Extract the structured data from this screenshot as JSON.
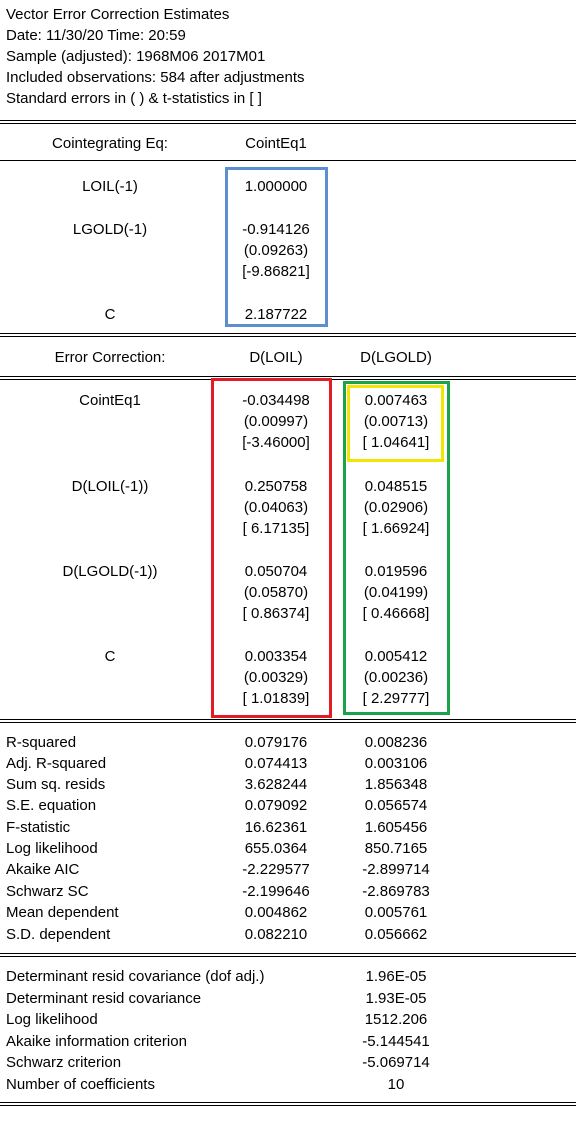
{
  "header": {
    "title": "Vector Error Correction Estimates",
    "date": "Date: 11/30/20   Time: 20:59",
    "sample": "Sample (adjusted): 1968M06 2017M01",
    "observations": "Included observations: 584 after adjustments",
    "std_note": "Standard errors in ( ) & t-statistics in [ ]"
  },
  "coint": {
    "header_label": "Cointegrating Eq:",
    "header_col": "CointEq1",
    "rows": [
      {
        "label": "LOIL(-1)",
        "coef": "1.000000"
      },
      {
        "label": "LGOLD(-1)",
        "coef": "-0.914126",
        "se": "(0.09263)",
        "t": "[-9.86821]"
      },
      {
        "label": "C",
        "coef": "2.187722"
      }
    ]
  },
  "ec": {
    "header_label": "Error Correction:",
    "col1": "D(LOIL)",
    "col2": "D(LGOLD)",
    "rows": [
      {
        "label": "CointEq1",
        "c1": [
          "-0.034498",
          "(0.00997)",
          "[-3.46000]"
        ],
        "c2": [
          "0.007463",
          "(0.00713)",
          "[ 1.04641]"
        ]
      },
      {
        "label": "D(LOIL(-1))",
        "c1": [
          "0.250758",
          "(0.04063)",
          "[ 6.17135]"
        ],
        "c2": [
          "0.048515",
          "(0.02906)",
          "[ 1.66924]"
        ]
      },
      {
        "label": "D(LGOLD(-1))",
        "c1": [
          "0.050704",
          "(0.05870)",
          "[ 0.86374]"
        ],
        "c2": [
          "0.019596",
          "(0.04199)",
          "[ 0.46668]"
        ]
      },
      {
        "label": "C",
        "c1": [
          "0.003354",
          "(0.00329)",
          "[ 1.01839]"
        ],
        "c2": [
          "0.005412",
          "(0.00236)",
          "[ 2.29777]"
        ]
      }
    ]
  },
  "stats": [
    {
      "label": "R-squared",
      "c1": "0.079176",
      "c2": "0.008236"
    },
    {
      "label": "Adj. R-squared",
      "c1": "0.074413",
      "c2": "0.003106"
    },
    {
      "label": "Sum sq. resids",
      "c1": "3.628244",
      "c2": "1.856348"
    },
    {
      "label": "S.E. equation",
      "c1": "0.079092",
      "c2": "0.056574"
    },
    {
      "label": "F-statistic",
      "c1": "16.62361",
      "c2": "1.605456"
    },
    {
      "label": "Log likelihood",
      "c1": "655.0364",
      "c2": "850.7165"
    },
    {
      "label": "Akaike AIC",
      "c1": "-2.229577",
      "c2": "-2.899714"
    },
    {
      "label": "Schwarz SC",
      "c1": "-2.199646",
      "c2": "-2.869783"
    },
    {
      "label": "Mean dependent",
      "c1": "0.004862",
      "c2": "0.005761"
    },
    {
      "label": "S.D. dependent",
      "c1": "0.082210",
      "c2": "0.056662"
    }
  ],
  "summary": [
    {
      "label": "Determinant resid covariance (dof adj.)",
      "value": "1.96E-05"
    },
    {
      "label": "Determinant resid covariance",
      "value": "1.93E-05"
    },
    {
      "label": "Log likelihood",
      "value": "1512.206"
    },
    {
      "label": "Akaike information criterion",
      "value": "-5.144541"
    },
    {
      "label": "Schwarz criterion",
      "value": "-5.069714"
    },
    {
      "label": "Number of coefficients",
      "value": "10"
    }
  ],
  "highlight_colors": {
    "coint_box": "#5b8fd0",
    "dloil_box": "#e31b23",
    "dlgold_box": "#1aa34a",
    "cell_box": "#f2e600"
  }
}
